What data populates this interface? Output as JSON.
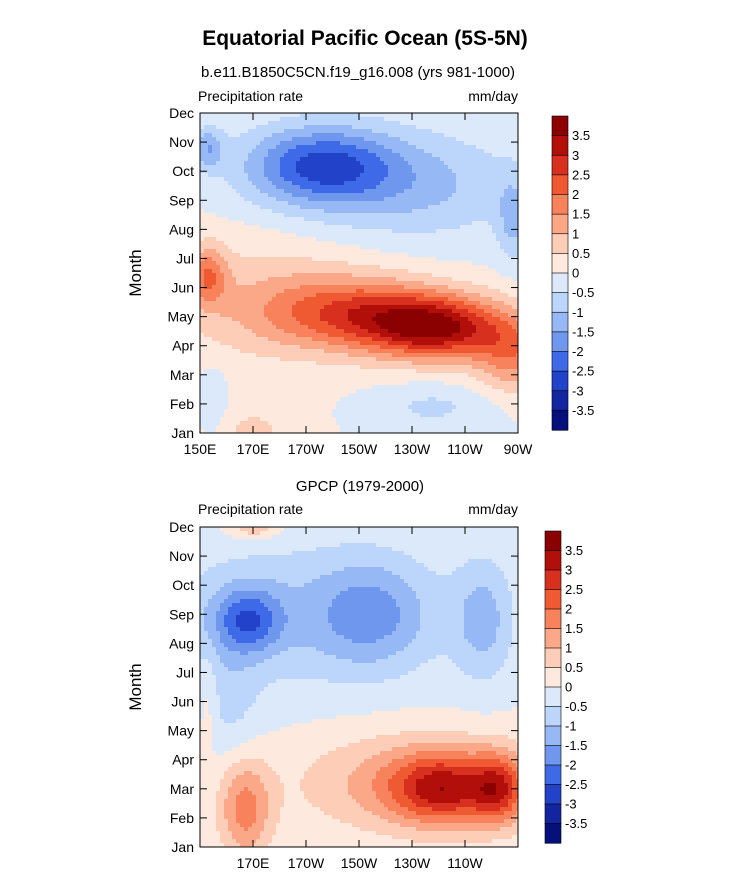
{
  "figure": {
    "title": "Equatorial Pacific Ocean (5S-5N)"
  },
  "colorbar": {
    "levels": [
      "3.5",
      "3",
      "2.5",
      "2",
      "1.5",
      "1",
      "0.5",
      "0",
      "-0.5",
      "-1",
      "-1.5",
      "-2",
      "-2.5",
      "-3",
      "-3.5"
    ],
    "colors": [
      "#8b0000",
      "#b30f0a",
      "#d7301f",
      "#ef5a33",
      "#f7825c",
      "#fba888",
      "#fdcdb7",
      "#fde9dd",
      "#dbe9fb",
      "#bcd5fa",
      "#96b8f4",
      "#6f97ee",
      "#3e6ae8",
      "#2142c9",
      "#1225a0",
      "#06107a"
    ]
  },
  "chart_data": [
    {
      "type": "heatmap",
      "title": "b.e11.B1850C5CN.f19_g16.008 (yrs 981-1000)",
      "left_label": "Precipitation rate",
      "right_label": "mm/day",
      "ylabel": "Month",
      "xlabel": "",
      "y_ticks": [
        "Jan",
        "Feb",
        "Mar",
        "Apr",
        "May",
        "Jun",
        "Jul",
        "Aug",
        "Sep",
        "Oct",
        "Nov",
        "Dec"
      ],
      "x_ticks": [
        "150E",
        "170E",
        "170W",
        "150W",
        "130W",
        "110W",
        "90W"
      ],
      "x_tick_lons": [
        150,
        170,
        190,
        210,
        230,
        250,
        270
      ],
      "xlim": [
        150,
        270
      ],
      "units": "mm/day",
      "centers": [
        {
          "lon": 195,
          "month": 10.2,
          "value": -2.4,
          "sx": 20,
          "sy": 0.95
        },
        {
          "lon": 153,
          "month": 10.8,
          "value": -1.3,
          "sx": 4,
          "sy": 0.5
        },
        {
          "lon": 230,
          "month": 9.5,
          "value": -1.1,
          "sx": 30,
          "sy": 1.3
        },
        {
          "lon": 268,
          "month": 8.3,
          "value": -1.0,
          "sx": 4,
          "sy": 1.0
        },
        {
          "lon": 240,
          "month": 4.6,
          "value": 3.1,
          "sx": 18,
          "sy": 0.75
        },
        {
          "lon": 210,
          "month": 5.1,
          "value": 2.2,
          "sx": 24,
          "sy": 0.85
        },
        {
          "lon": 268,
          "month": 3.7,
          "value": 1.6,
          "sx": 10,
          "sy": 0.9
        },
        {
          "lon": 153,
          "month": 6.4,
          "value": 1.6,
          "sx": 5,
          "sy": 0.7
        },
        {
          "lon": 175,
          "month": 5.6,
          "value": 0.8,
          "sx": 30,
          "sy": 1.5
        },
        {
          "lon": 238,
          "month": 1.9,
          "value": -0.6,
          "sx": 16,
          "sy": 0.55
        },
        {
          "lon": 155,
          "month": 2.0,
          "value": -0.5,
          "sx": 4,
          "sy": 0.9
        },
        {
          "lon": 170,
          "month": 1.0,
          "value": 0.6,
          "sx": 12,
          "sy": 0.75
        }
      ]
    },
    {
      "type": "heatmap",
      "title": "GPCP (1979-2000)",
      "left_label": "Precipitation rate",
      "right_label": "mm/day",
      "ylabel": "Month",
      "xlabel": "",
      "y_ticks": [
        "Jan",
        "Feb",
        "Mar",
        "Apr",
        "May",
        "Jun",
        "Jul",
        "Aug",
        "Sep",
        "Oct",
        "Nov",
        "Dec"
      ],
      "x_ticks": [
        "170E",
        "170W",
        "150W",
        "130W",
        "110W"
      ],
      "x_tick_lons": [
        170,
        190,
        210,
        230,
        250
      ],
      "xlim": [
        150,
        270
      ],
      "units": "mm/day",
      "centers": [
        {
          "lon": 168,
          "month": 8.8,
          "value": -1.8,
          "sx": 9,
          "sy": 0.8
        },
        {
          "lon": 215,
          "month": 9.0,
          "value": -1.2,
          "sx": 15,
          "sy": 1.3
        },
        {
          "lon": 257,
          "month": 8.8,
          "value": -1.1,
          "sx": 8,
          "sy": 1.5
        },
        {
          "lon": 185,
          "month": 9.0,
          "value": -0.9,
          "sx": 40,
          "sy": 1.8
        },
        {
          "lon": 160,
          "month": 6.0,
          "value": -0.6,
          "sx": 9,
          "sy": 1.5
        },
        {
          "lon": 242,
          "month": 3.0,
          "value": 2.3,
          "sx": 14,
          "sy": 0.85
        },
        {
          "lon": 263,
          "month": 3.0,
          "value": 2.0,
          "sx": 7,
          "sy": 0.85
        },
        {
          "lon": 230,
          "month": 3.2,
          "value": 1.3,
          "sx": 30,
          "sy": 1.2
        },
        {
          "lon": 167,
          "month": 2.3,
          "value": 1.7,
          "sx": 7,
          "sy": 1.2
        },
        {
          "lon": 153,
          "month": 6.0,
          "value": 0.6,
          "sx": 3,
          "sy": 1.2
        },
        {
          "lon": 170,
          "month": 12.0,
          "value": 1.0,
          "sx": 7,
          "sy": 0.3
        }
      ]
    }
  ]
}
